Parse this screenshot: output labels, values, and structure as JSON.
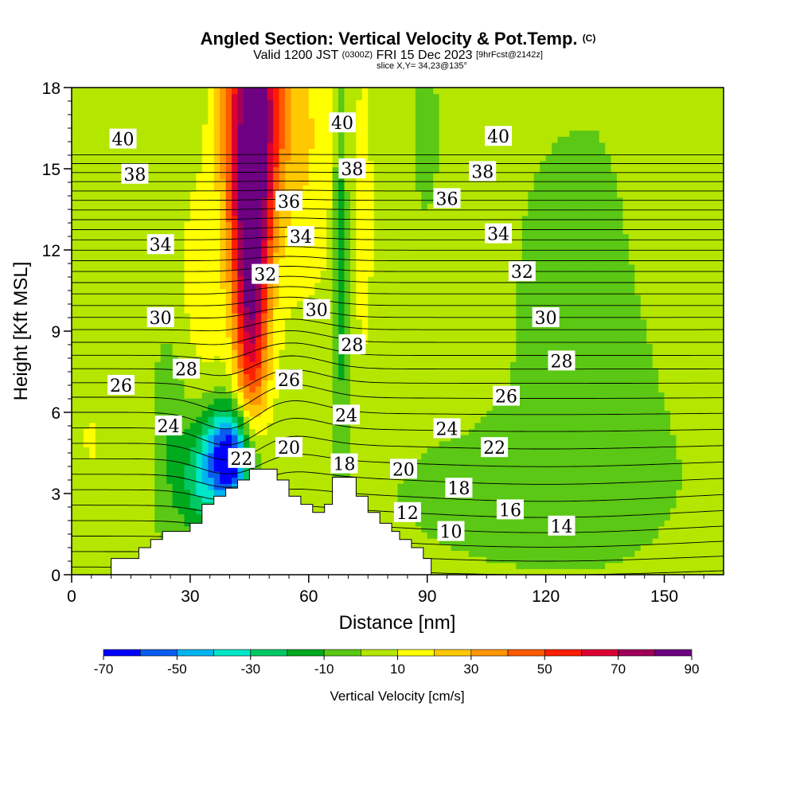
{
  "title": {
    "main": "Angled Section: Vertical Velocity & Pot.Temp.",
    "main_suffix": "(C)",
    "valid_prefix": "Valid 1200 JST",
    "valid_utc": "(0300Z)",
    "valid_date": "FRI 15 Dec 2023",
    "forecast": "[9hrFcst@2142z]",
    "slice": "slice X,Y= 34,23@135°"
  },
  "chart_data": {
    "type": "heatmap",
    "xlabel": "Distance [nm]",
    "ylabel": "Height [Kft MSL]",
    "xlim": [
      0,
      165
    ],
    "ylim": [
      0,
      18
    ],
    "x_ticks": [
      0,
      30,
      60,
      90,
      120,
      150
    ],
    "y_ticks": [
      0,
      3,
      6,
      9,
      12,
      15,
      18
    ],
    "colorbar": {
      "title": "Vertical Velocity [cm/s]",
      "levels": [
        -70,
        -60,
        -50,
        -40,
        -30,
        -20,
        -10,
        0,
        10,
        20,
        30,
        40,
        50,
        60,
        70,
        80,
        90
      ],
      "labels": [
        -70,
        -50,
        -30,
        -10,
        10,
        30,
        50,
        70,
        90
      ],
      "colors": [
        "#0000ff",
        "#0a5cf0",
        "#00b4f0",
        "#00e6c8",
        "#00c864",
        "#00aa1e",
        "#5ac814",
        "#b4e600",
        "#ffff00",
        "#ffc800",
        "#ff9600",
        "#ff5a00",
        "#ff1e00",
        "#dc0032",
        "#a0005a",
        "#6e0082"
      ]
    },
    "isentrope_labels": [
      {
        "text": "40",
        "x": 13,
        "y": 16.1
      },
      {
        "text": "38",
        "x": 16,
        "y": 14.8
      },
      {
        "text": "34",
        "x": 22.5,
        "y": 12.2
      },
      {
        "text": "30",
        "x": 22.5,
        "y": 9.5
      },
      {
        "text": "28",
        "x": 29,
        "y": 7.6
      },
      {
        "text": "26",
        "x": 12.5,
        "y": 7.0
      },
      {
        "text": "24",
        "x": 24.5,
        "y": 5.5
      },
      {
        "text": "22",
        "x": 43,
        "y": 4.3
      },
      {
        "text": "36",
        "x": 55,
        "y": 13.8
      },
      {
        "text": "34",
        "x": 58,
        "y": 12.5
      },
      {
        "text": "32",
        "x": 49,
        "y": 11.1
      },
      {
        "text": "30",
        "x": 62,
        "y": 9.8
      },
      {
        "text": "26",
        "x": 55,
        "y": 7.2
      },
      {
        "text": "20",
        "x": 55,
        "y": 4.7
      },
      {
        "text": "40",
        "x": 68.5,
        "y": 16.7
      },
      {
        "text": "38",
        "x": 71,
        "y": 15.0
      },
      {
        "text": "28",
        "x": 71,
        "y": 8.5
      },
      {
        "text": "24",
        "x": 69.5,
        "y": 5.9
      },
      {
        "text": "18",
        "x": 69,
        "y": 4.1
      },
      {
        "text": "20",
        "x": 84,
        "y": 3.9
      },
      {
        "text": "12",
        "x": 85,
        "y": 2.3
      },
      {
        "text": "10",
        "x": 96,
        "y": 1.6
      },
      {
        "text": "18",
        "x": 98,
        "y": 3.2
      },
      {
        "text": "24",
        "x": 95,
        "y": 5.4
      },
      {
        "text": "22",
        "x": 107,
        "y": 4.7
      },
      {
        "text": "16",
        "x": 111,
        "y": 2.4
      },
      {
        "text": "14",
        "x": 124,
        "y": 1.8
      },
      {
        "text": "26",
        "x": 110,
        "y": 6.6
      },
      {
        "text": "28",
        "x": 124,
        "y": 7.9
      },
      {
        "text": "30",
        "x": 120,
        "y": 9.5
      },
      {
        "text": "32",
        "x": 114,
        "y": 11.2
      },
      {
        "text": "34",
        "x": 108,
        "y": 12.6
      },
      {
        "text": "36",
        "x": 95,
        "y": 13.9
      },
      {
        "text": "38",
        "x": 104,
        "y": 14.9
      },
      {
        "text": "40",
        "x": 108,
        "y": 16.2
      }
    ],
    "terrain": [
      [
        10,
        0.6
      ],
      [
        17,
        0.6
      ],
      [
        17,
        1.0
      ],
      [
        20,
        1.0
      ],
      [
        20,
        1.3
      ],
      [
        23,
        1.3
      ],
      [
        23,
        1.6
      ],
      [
        30,
        1.6
      ],
      [
        30,
        1.9
      ],
      [
        33,
        1.9
      ],
      [
        33,
        2.6
      ],
      [
        36,
        2.6
      ],
      [
        36,
        2.9
      ],
      [
        39,
        2.9
      ],
      [
        39,
        3.2
      ],
      [
        42,
        3.2
      ],
      [
        42,
        3.5
      ],
      [
        45,
        3.5
      ],
      [
        45,
        3.9
      ],
      [
        52,
        3.9
      ],
      [
        52,
        3.5
      ],
      [
        55,
        3.5
      ],
      [
        55,
        2.9
      ],
      [
        58,
        2.9
      ],
      [
        58,
        2.6
      ],
      [
        61,
        2.6
      ],
      [
        61,
        2.3
      ],
      [
        64,
        2.3
      ],
      [
        64,
        2.6
      ],
      [
        66,
        2.6
      ],
      [
        66,
        3.6
      ],
      [
        72,
        3.6
      ],
      [
        72,
        2.9
      ],
      [
        75,
        2.9
      ],
      [
        75,
        2.3
      ],
      [
        78,
        2.3
      ],
      [
        78,
        1.9
      ],
      [
        81,
        1.9
      ],
      [
        81,
        1.6
      ],
      [
        83,
        1.6
      ],
      [
        83,
        1.3
      ],
      [
        86,
        1.3
      ],
      [
        86,
        1.0
      ],
      [
        89,
        1.0
      ],
      [
        89,
        0.6
      ],
      [
        91,
        0.6
      ]
    ]
  }
}
